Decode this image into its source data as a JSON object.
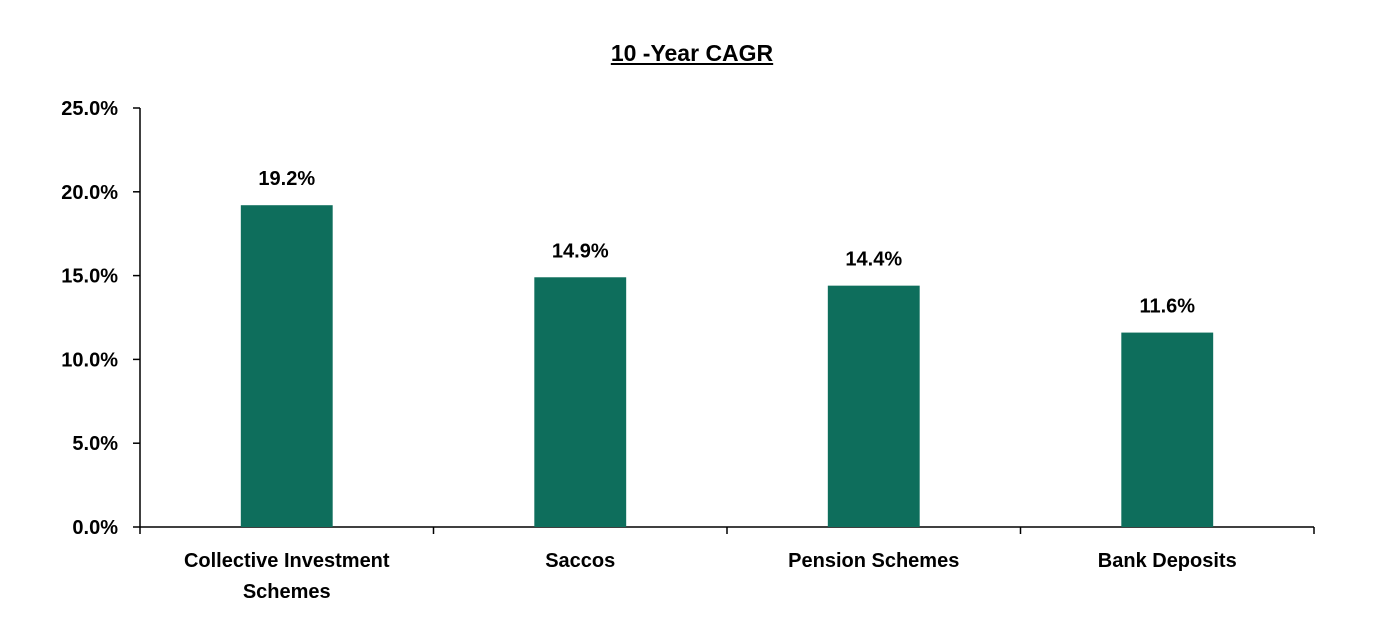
{
  "chart_data": {
    "type": "bar",
    "title": "10 -Year CAGR",
    "categories": [
      [
        "Collective Investment",
        "Schemes"
      ],
      [
        "Saccos"
      ],
      [
        "Pension Schemes"
      ],
      [
        "Bank Deposits"
      ]
    ],
    "values": [
      19.2,
      14.9,
      14.4,
      11.6
    ],
    "data_labels": [
      "19.2%",
      "14.9%",
      "14.4%",
      "11.6%"
    ],
    "ylim": [
      0,
      25
    ],
    "yticks": [
      0,
      5,
      10,
      15,
      20,
      25
    ],
    "ytick_labels": [
      "0.0%",
      "5.0%",
      "10.0%",
      "15.0%",
      "20.0%",
      "25.0%"
    ],
    "xlabel": "",
    "ylabel": "",
    "grid": false,
    "legend": "none",
    "colors": {
      "bar": "#0e6e5c",
      "axis": "#000000"
    }
  }
}
